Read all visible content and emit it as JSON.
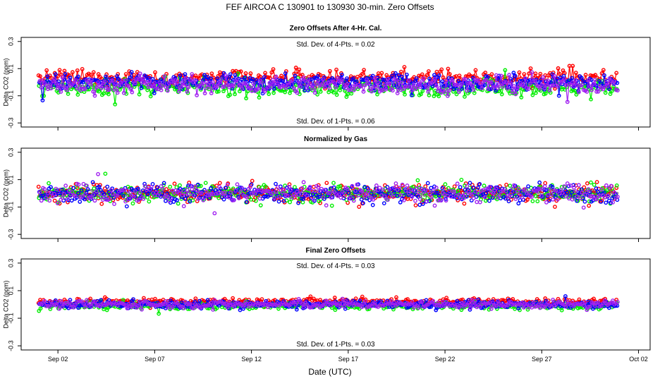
{
  "main_title": "FEF   AIRCOA C   130901 to 130930   30-min. Zero Offsets",
  "chart_data": {
    "type": "scatter",
    "xlabel": "Date (UTC)",
    "x_ticks": [
      "Sep 02",
      "Sep 07",
      "Sep 12",
      "Sep 17",
      "Sep 22",
      "Sep 27",
      "Oct 02"
    ],
    "x_tick_values": [
      2,
      7,
      12,
      17,
      22,
      27,
      32
    ],
    "xlim": [
      0.1,
      32.6
    ],
    "data_xrange": [
      1.0,
      30.9
    ],
    "series_colors": [
      "#ff0000",
      "#00ee00",
      "#0000ff",
      "#a020f0"
    ],
    "panels": [
      {
        "title": "Zero Offsets After 4-Hr. Cal.",
        "ylabel": "Delta CO2 (ppm)",
        "ylim": [
          -0.33,
          0.33
        ],
        "y_ticks": [
          "-0.3",
          "-0.1",
          "0.1",
          "0.3"
        ],
        "y_tick_values": [
          -0.3,
          -0.1,
          0.1,
          0.3
        ],
        "annotation_top": "Std. Dev. of 4-Pts. =  0.02",
        "annotation_bottom": "Std. Dev. of 1-Pts. =  0.06",
        "series_offsets": [
          0.03,
          -0.04,
          0.0,
          -0.02
        ],
        "spread": 0.055,
        "has_mean_band": false
      },
      {
        "title": "Normalized by Gas",
        "ylabel": "Delta CO2 (ppm)",
        "ylim": [
          -0.33,
          0.33
        ],
        "y_ticks": [
          "-0.3",
          "-0.1",
          "0.1",
          "0.3"
        ],
        "y_tick_values": [
          -0.3,
          -0.1,
          0.1,
          0.3
        ],
        "annotation_top": "",
        "annotation_bottom": "",
        "series_offsets": [
          0.0,
          0.0,
          0.0,
          0.0
        ],
        "spread": 0.06,
        "has_mean_band": true
      },
      {
        "title": "Final Zero Offsets",
        "ylabel": "Delta CO2 (ppm)",
        "ylim": [
          -0.33,
          0.33
        ],
        "y_ticks": [
          "-0.3",
          "-0.1",
          "0.1",
          "0.3"
        ],
        "y_tick_values": [
          -0.3,
          -0.1,
          0.1,
          0.3
        ],
        "annotation_top": "Std. Dev. of 4-Pts. =  0.03",
        "annotation_bottom": "Std. Dev. of 1-Pts. =  0.03",
        "series_offsets": [
          0.02,
          -0.01,
          0.0,
          0.0
        ],
        "spread": 0.025,
        "has_mean_band": false
      }
    ]
  }
}
